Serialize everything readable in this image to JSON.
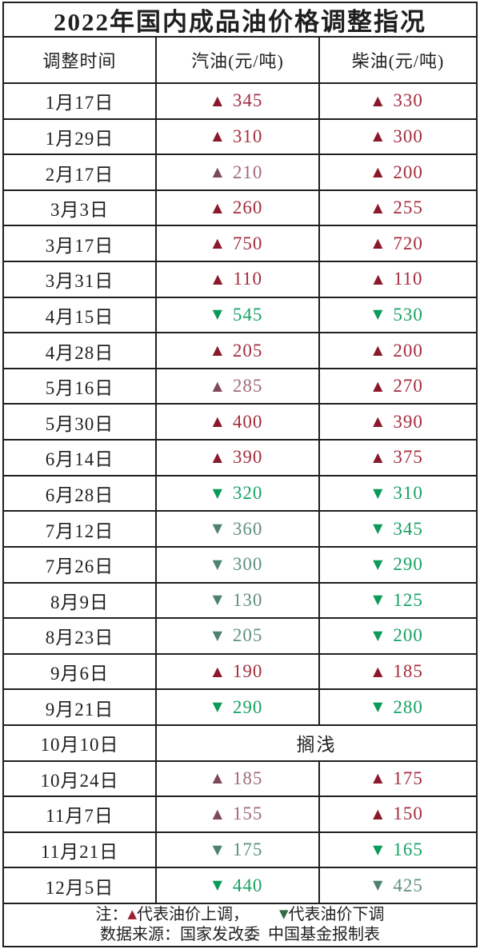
{
  "title": "2022年国内成品油价格调整指况",
  "symbols": {
    "up": "▲",
    "down": "▼"
  },
  "colors": {
    "ink": "#1f1f1f",
    "border": "#1f1f1f",
    "bg": "#ffffff",
    "up_tri": "#8a1a2b",
    "up_num": "#a42c3e",
    "up_tri_muted": "#7d4a57",
    "up_num_muted": "#9f6b76",
    "down_tri": "#0c9a58",
    "down_num": "#17a263",
    "down_tri_muted": "#4e8270",
    "down_num_muted": "#619080",
    "note_up": "#9a1f31",
    "note_down": "#2f6b49"
  },
  "chart_data": {
    "type": "table",
    "title": "2022年国内成品油价格调整指况",
    "columns": [
      "调整时间",
      "汽油(元/吨)",
      "柴油(元/吨)"
    ],
    "unit": "元/吨",
    "rows": [
      {
        "date": "1月17日",
        "gasoline": {
          "direction": "up",
          "value": 345,
          "muted": false
        },
        "diesel": {
          "direction": "up",
          "value": 330,
          "muted": false
        }
      },
      {
        "date": "1月29日",
        "gasoline": {
          "direction": "up",
          "value": 310,
          "muted": false
        },
        "diesel": {
          "direction": "up",
          "value": 300,
          "muted": false
        }
      },
      {
        "date": "2月17日",
        "gasoline": {
          "direction": "up",
          "value": 210,
          "muted": true
        },
        "diesel": {
          "direction": "up",
          "value": 200,
          "muted": false
        }
      },
      {
        "date": "3月3日",
        "gasoline": {
          "direction": "up",
          "value": 260,
          "muted": false
        },
        "diesel": {
          "direction": "up",
          "value": 255,
          "muted": false
        }
      },
      {
        "date": "3月17日",
        "gasoline": {
          "direction": "up",
          "value": 750,
          "muted": false
        },
        "diesel": {
          "direction": "up",
          "value": 720,
          "muted": false
        }
      },
      {
        "date": "3月31日",
        "gasoline": {
          "direction": "up",
          "value": 110,
          "muted": false
        },
        "diesel": {
          "direction": "up",
          "value": 110,
          "muted": false
        }
      },
      {
        "date": "4月15日",
        "gasoline": {
          "direction": "down",
          "value": 545,
          "muted": false
        },
        "diesel": {
          "direction": "down",
          "value": 530,
          "muted": false
        }
      },
      {
        "date": "4月28日",
        "gasoline": {
          "direction": "up",
          "value": 205,
          "muted": false
        },
        "diesel": {
          "direction": "up",
          "value": 200,
          "muted": false
        }
      },
      {
        "date": "5月16日",
        "gasoline": {
          "direction": "up",
          "value": 285,
          "muted": true
        },
        "diesel": {
          "direction": "up",
          "value": 270,
          "muted": false
        }
      },
      {
        "date": "5月30日",
        "gasoline": {
          "direction": "up",
          "value": 400,
          "muted": false
        },
        "diesel": {
          "direction": "up",
          "value": 390,
          "muted": false
        }
      },
      {
        "date": "6月14日",
        "gasoline": {
          "direction": "up",
          "value": 390,
          "muted": false
        },
        "diesel": {
          "direction": "up",
          "value": 375,
          "muted": false
        }
      },
      {
        "date": "6月28日",
        "gasoline": {
          "direction": "down",
          "value": 320,
          "muted": false
        },
        "diesel": {
          "direction": "down",
          "value": 310,
          "muted": false
        }
      },
      {
        "date": "7月12日",
        "gasoline": {
          "direction": "down",
          "value": 360,
          "muted": true
        },
        "diesel": {
          "direction": "down",
          "value": 345,
          "muted": false
        }
      },
      {
        "date": "7月26日",
        "gasoline": {
          "direction": "down",
          "value": 300,
          "muted": true
        },
        "diesel": {
          "direction": "down",
          "value": 290,
          "muted": false
        }
      },
      {
        "date": "8月9日",
        "gasoline": {
          "direction": "down",
          "value": 130,
          "muted": true
        },
        "diesel": {
          "direction": "down",
          "value": 125,
          "muted": false
        }
      },
      {
        "date": "8月23日",
        "gasoline": {
          "direction": "down",
          "value": 205,
          "muted": true
        },
        "diesel": {
          "direction": "down",
          "value": 200,
          "muted": false
        }
      },
      {
        "date": "9月6日",
        "gasoline": {
          "direction": "up",
          "value": 190,
          "muted": false
        },
        "diesel": {
          "direction": "up",
          "value": 185,
          "muted": false
        }
      },
      {
        "date": "9月21日",
        "gasoline": {
          "direction": "down",
          "value": 290,
          "muted": false
        },
        "diesel": {
          "direction": "down",
          "value": 280,
          "muted": false
        }
      },
      {
        "date": "10月10日",
        "stranded": "搁浅"
      },
      {
        "date": "10月24日",
        "gasoline": {
          "direction": "up",
          "value": 185,
          "muted": true
        },
        "diesel": {
          "direction": "up",
          "value": 175,
          "muted": false
        }
      },
      {
        "date": "11月7日",
        "gasoline": {
          "direction": "up",
          "value": 155,
          "muted": true
        },
        "diesel": {
          "direction": "up",
          "value": 150,
          "muted": false
        }
      },
      {
        "date": "11月21日",
        "gasoline": {
          "direction": "down",
          "value": 175,
          "muted": true
        },
        "diesel": {
          "direction": "down",
          "value": 165,
          "muted": false
        }
      },
      {
        "date": "12月5日",
        "gasoline": {
          "direction": "down",
          "value": 440,
          "muted": false
        },
        "diesel": {
          "direction": "down",
          "value": 425,
          "muted": true
        }
      }
    ]
  },
  "footer": {
    "note_prefix": "注：",
    "up_symbol": "▲",
    "up_text": "代表油价上调，",
    "down_symbol": "▼",
    "down_text": "代表油价下调",
    "source": "数据来源：国家发改委  中国基金报制表"
  }
}
